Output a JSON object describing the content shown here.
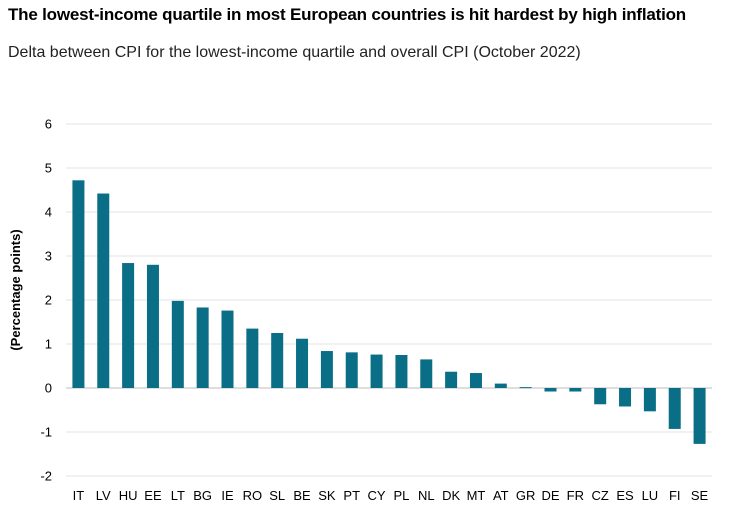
{
  "chart_data": {
    "type": "bar",
    "title": "The lowest-income quartile in most European countries is hit hardest by high inflation",
    "subtitle": "Delta between CPI for the lowest-income quartile and overall CPI (October 2022)",
    "xlabel": "",
    "ylabel": "(Percentage points)",
    "ylim": [
      -2,
      6
    ],
    "yticks": [
      6,
      5,
      4,
      3,
      2,
      1,
      0,
      -1,
      -2
    ],
    "grid": true,
    "bar_color": "#0a6e86",
    "categories": [
      "IT",
      "LV",
      "HU",
      "EE",
      "LT",
      "BG",
      "IE",
      "RO",
      "SL",
      "BE",
      "SK",
      "PT",
      "CY",
      "PL",
      "NL",
      "DK",
      "MT",
      "AT",
      "GR",
      "DE",
      "FR",
      "CZ",
      "ES",
      "LU",
      "FI",
      "SE"
    ],
    "values": [
      4.72,
      4.42,
      2.84,
      2.8,
      1.98,
      1.83,
      1.76,
      1.35,
      1.25,
      1.12,
      0.84,
      0.81,
      0.76,
      0.75,
      0.65,
      0.37,
      0.34,
      0.1,
      0.02,
      -0.08,
      -0.08,
      -0.37,
      -0.42,
      -0.53,
      -0.93,
      -1.27
    ]
  }
}
